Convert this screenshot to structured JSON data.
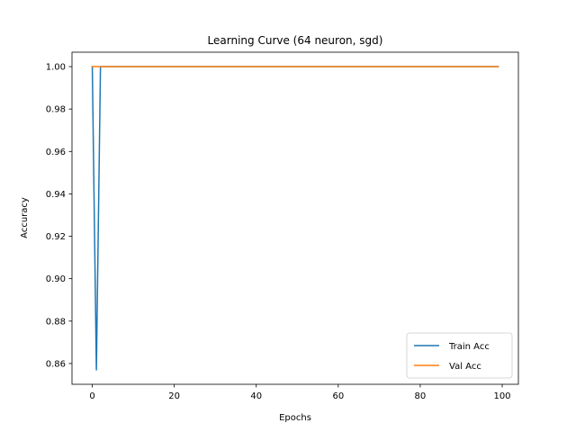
{
  "chart_data": {
    "type": "line",
    "title": "Learning Curve (64 neuron, sgd)",
    "xlabel": "Epochs",
    "ylabel": "Accuracy",
    "xlim": [
      -4.95,
      103.95
    ],
    "ylim": [
      0.8502,
      1.0068
    ],
    "xticks": [
      0,
      20,
      40,
      60,
      80,
      100
    ],
    "yticks": [
      0.86,
      0.88,
      0.9,
      0.92,
      0.94,
      0.96,
      0.98,
      1.0
    ],
    "xtick_labels": [
      "0",
      "20",
      "40",
      "60",
      "80",
      "100"
    ],
    "ytick_labels": [
      "0.86",
      "0.88",
      "0.90",
      "0.92",
      "0.94",
      "0.96",
      "0.98",
      "1.00"
    ],
    "grid": false,
    "legend_position": "lower-right",
    "series": [
      {
        "name": "Train Acc",
        "color": "#1f77b4",
        "x": [
          0,
          1,
          2,
          99
        ],
        "y": [
          1.0,
          0.857,
          1.0,
          1.0
        ]
      },
      {
        "name": "Val Acc",
        "color": "#ff7f0e",
        "x": [
          0,
          99
        ],
        "y": [
          1.0,
          1.0
        ]
      }
    ]
  }
}
